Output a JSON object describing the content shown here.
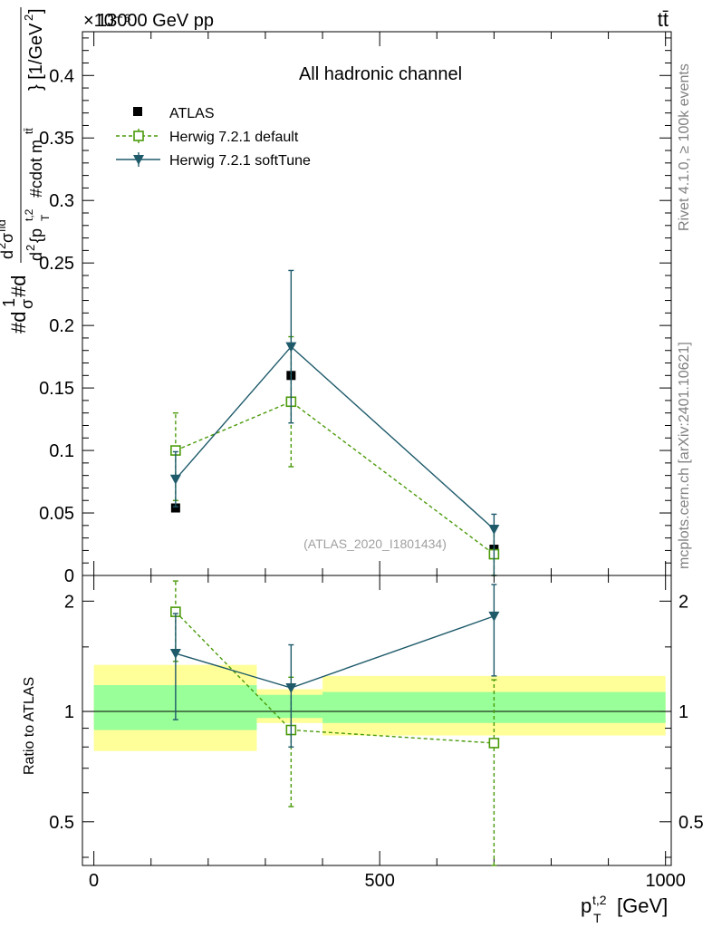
{
  "header": {
    "energy_label": "13000 GeV pp",
    "process_label": "tt̄",
    "exponent_label": "×10⁻⁶"
  },
  "side_text": {
    "rivet": "Rivet 4.1.0, ≥ 100k events",
    "mcplots": "mcplots.cern.ch [arXiv:2401.10621]"
  },
  "chart_data": [
    {
      "type": "scatter",
      "title": "All hadronic channel",
      "watermark": "(ATLAS_2020_I1801434)",
      "xlabel_main": "p",
      "xlabel_sup": "t,2",
      "xlabel_sub": "T",
      "xlabel_unit": "[GeV]",
      "ylabel": "#d1/σ#d d²σ^{fid}/d²{p_T^{t,2} #cdot m^{tt̄}} [1/GeV²]",
      "ylabel_parts": {
        "a": "#d",
        "b": "1",
        "c": "σ",
        "d": "#d",
        "e": "d",
        "e2": "2",
        "f": "σ",
        "fid": "fid",
        "g": "d",
        "g2": "2",
        "h": "{p",
        "h_sup": "t,2",
        "h_sub": "T",
        "i": "#cdot m",
        "i_sup": "tt̄",
        "j": "} [1/GeV",
        "j2": "2",
        "k": "]"
      },
      "xlim": [
        -20,
        1010
      ],
      "ylim": [
        0,
        0.435
      ],
      "yticks": [
        0,
        0.05,
        0.1,
        0.15,
        0.2,
        0.25,
        0.3,
        0.35,
        0.4
      ],
      "ytick_labels": [
        "0",
        "0.05",
        "0.1",
        "0.15",
        "0.2",
        "0.25",
        "0.3",
        "0.35",
        "0.4"
      ],
      "legend": [
        "ATLAS",
        "Herwig 7.2.1 default",
        "Herwig 7.2.1 softTune"
      ],
      "legend_position": "top-left",
      "series": [
        {
          "name": "ATLAS",
          "marker": "filled-square",
          "color": "#000000",
          "x": [
            143,
            345,
            700
          ],
          "y": [
            0.054,
            0.16,
            0.021
          ],
          "err": [
            0,
            0,
            0
          ]
        },
        {
          "name": "Herwig 7.2.1 default",
          "marker": "open-square",
          "line": "dashed",
          "color": "#4a9a0a",
          "x": [
            143,
            345,
            700
          ],
          "y": [
            0.1,
            0.139,
            0.017
          ],
          "err_lo": [
            0.04,
            0.052,
            0.02
          ],
          "err_hi": [
            0.03,
            0.052,
            0.02
          ]
        },
        {
          "name": "Herwig 7.2.1 softTune",
          "marker": "filled-triangle-down",
          "line": "solid",
          "color": "#1e5a6a",
          "x": [
            143,
            345,
            700
          ],
          "y": [
            0.077,
            0.183,
            0.037
          ],
          "err_lo": [
            0.022,
            0.061,
            0.037
          ],
          "err_hi": [
            0.022,
            0.061,
            0.012
          ]
        }
      ]
    },
    {
      "type": "scatter",
      "ylabel": "Ratio to ATLAS",
      "xlim": [
        -20,
        1010
      ],
      "ylim": [
        0.38,
        2.35
      ],
      "ytick_labels": [
        "0.5",
        "1",
        "2"
      ],
      "yticks": [
        0.5,
        1,
        2
      ],
      "xtick_labels": [
        "0",
        "500",
        "1000"
      ],
      "xticks": [
        0,
        500,
        1000
      ],
      "bands": [
        {
          "x0": 0,
          "x1": 285,
          "yellow": [
            0.78,
            1.34
          ],
          "green": [
            0.89,
            1.18
          ]
        },
        {
          "x0": 285,
          "x1": 400,
          "yellow": [
            0.93,
            1.15
          ],
          "green": [
            0.96,
            1.11
          ]
        },
        {
          "x0": 400,
          "x1": 1000,
          "yellow": [
            0.86,
            1.25
          ],
          "green": [
            0.93,
            1.13
          ]
        }
      ],
      "series": [
        {
          "name": "Herwig 7.2.1 default",
          "color": "#4a9a0a",
          "x": [
            143,
            345,
            700
          ],
          "y": [
            1.87,
            0.89,
            0.82
          ],
          "err_lo": [
            0.5,
            0.34,
            0.5
          ],
          "err_hi": [
            0.4,
            0.35,
            0.4
          ]
        },
        {
          "name": "Herwig 7.2.1 softTune",
          "color": "#1e5a6a",
          "x": [
            143,
            345,
            700
          ],
          "y": [
            1.44,
            1.16,
            1.82
          ],
          "err_lo": [
            0.49,
            0.36,
            0.57
          ],
          "err_hi": [
            0.41,
            0.36,
            0.4
          ]
        }
      ]
    }
  ]
}
